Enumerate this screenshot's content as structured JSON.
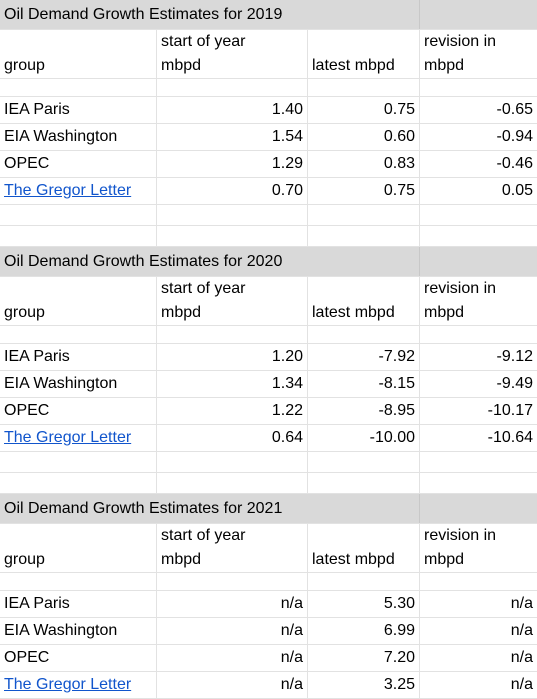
{
  "tables": [
    {
      "title": "Oil Demand Growth Estimates for 2019",
      "headers": {
        "group": "group",
        "start_l1": "start of year",
        "start_l2": "mbpd",
        "latest": "latest mbpd",
        "rev_l1": "revision in",
        "rev_l2": "mbpd"
      },
      "rows": [
        {
          "group": "IEA Paris",
          "start": "1.40",
          "latest": "0.75",
          "revision": "-0.65"
        },
        {
          "group": "EIA Washington",
          "start": "1.54",
          "latest": "0.60",
          "revision": "-0.94"
        },
        {
          "group": "OPEC",
          "start": "1.29",
          "latest": "0.83",
          "revision": "-0.46"
        },
        {
          "group": "The Gregor Letter",
          "start": "0.70",
          "latest": "0.75",
          "revision": "0.05"
        }
      ]
    },
    {
      "title": "Oil Demand Growth Estimates for 2020",
      "headers": {
        "group": "group",
        "start_l1": "start of year",
        "start_l2": "mbpd",
        "latest": "latest mbpd",
        "rev_l1": "revision in",
        "rev_l2": "mbpd"
      },
      "rows": [
        {
          "group": "IEA Paris",
          "start": "1.20",
          "latest": "-7.92",
          "revision": "-9.12"
        },
        {
          "group": "EIA Washington",
          "start": "1.34",
          "latest": "-8.15",
          "revision": "-9.49"
        },
        {
          "group": "OPEC",
          "start": "1.22",
          "latest": "-8.95",
          "revision": "-10.17"
        },
        {
          "group": "The Gregor Letter",
          "start": "0.64",
          "latest": "-10.00",
          "revision": "-10.64"
        }
      ]
    },
    {
      "title": "Oil Demand Growth Estimates for 2021",
      "headers": {
        "group": "group",
        "start_l1": "start of year",
        "start_l2": "mbpd",
        "latest": "latest mbpd",
        "rev_l1": "revision in",
        "rev_l2": "mbpd"
      },
      "rows": [
        {
          "group": "IEA Paris",
          "start": "n/a",
          "latest": "5.30",
          "revision": "n/a"
        },
        {
          "group": "EIA Washington",
          "start": "n/a",
          "latest": "6.99",
          "revision": "n/a"
        },
        {
          "group": "OPEC",
          "start": "n/a",
          "latest": "7.20",
          "revision": "n/a"
        },
        {
          "group": "The Gregor Letter",
          "start": "n/a",
          "latest": "3.25",
          "revision": "n/a"
        }
      ]
    }
  ],
  "colors": {
    "link": "#1155cc",
    "title_bg": "#d9d9d9",
    "grid": "#e2e2e2"
  }
}
